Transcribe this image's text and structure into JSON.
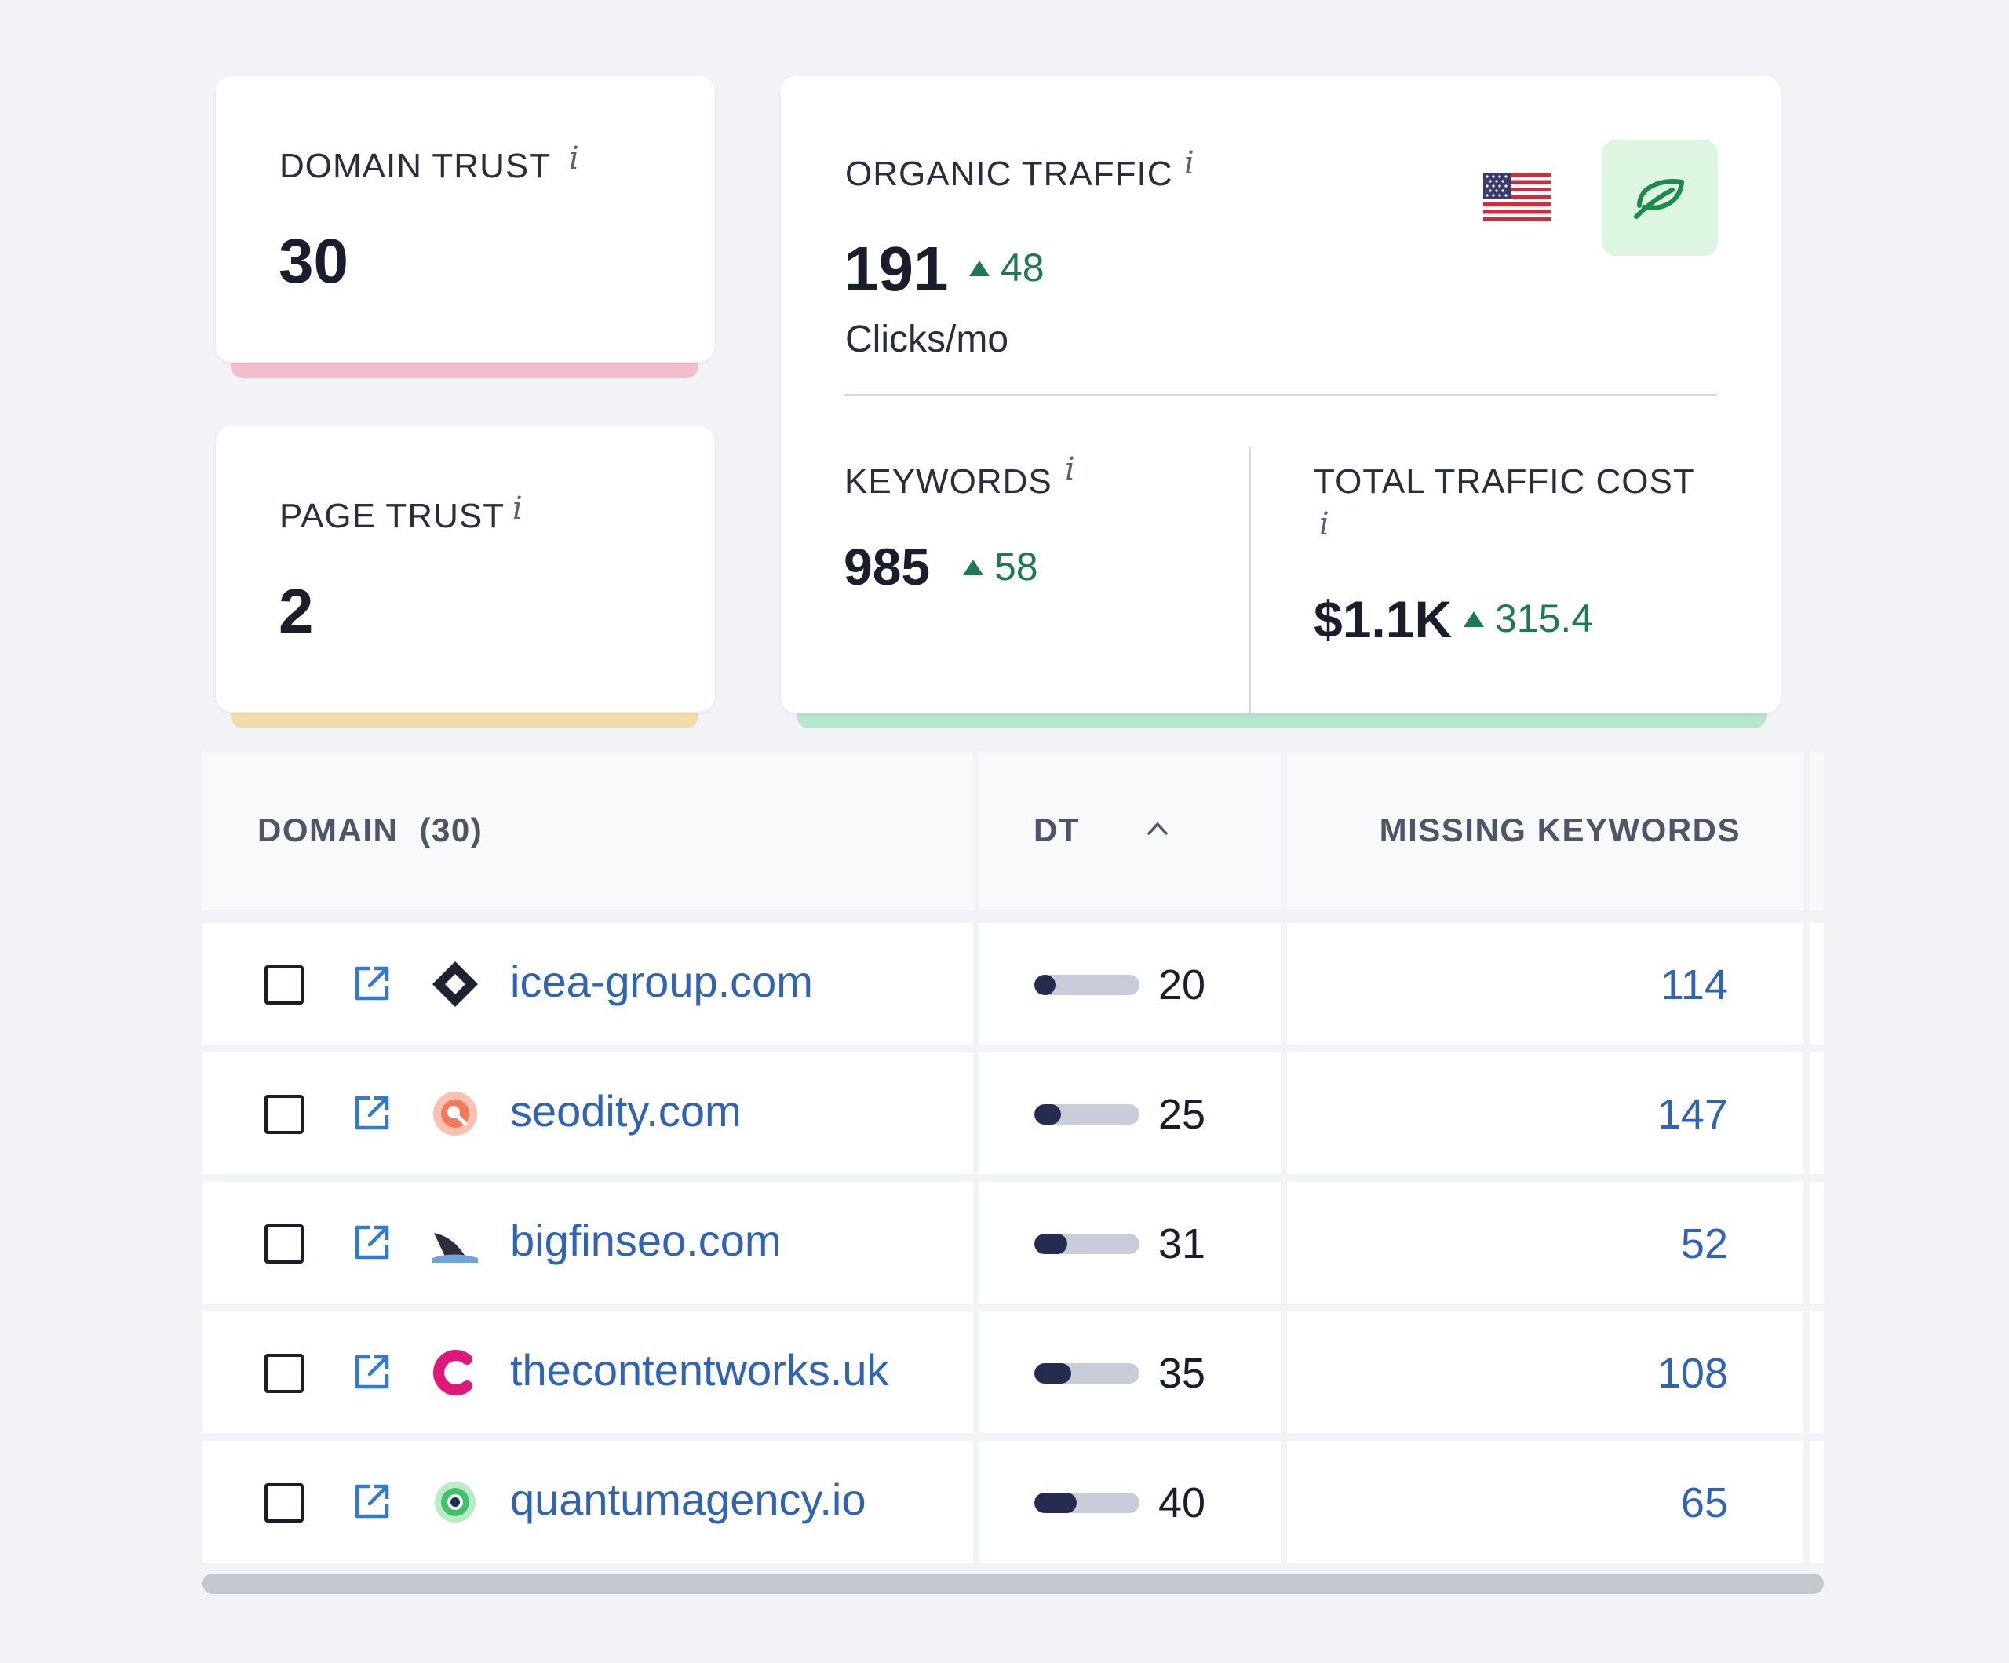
{
  "domain_trust": {
    "label": "DOMAIN TRUST",
    "info": "i",
    "value": "30",
    "accent": "#f2bccc"
  },
  "page_trust": {
    "label": "PAGE TRUST",
    "info": "i",
    "value": "2",
    "accent": "#f3dcac"
  },
  "organic": {
    "label": "ORGANIC TRAFFIC",
    "info": "i",
    "value": "191",
    "delta": "48",
    "unit": "Clicks/mo",
    "flag_icon": "us-flag-icon",
    "leaf_icon": "leaf-icon",
    "accent": "#b6e6cc",
    "keywords": {
      "label": "KEYWORDS",
      "info": "i",
      "value": "985",
      "delta": "58"
    },
    "cost": {
      "label": "TOTAL TRAFFIC COST",
      "info": "i",
      "value": "$1.1K",
      "delta": "315.4"
    }
  },
  "table": {
    "headers": {
      "domain": "DOMAIN",
      "domain_count": "(30)",
      "dt": "DT",
      "missing": "MISSING KEYWORDS"
    },
    "rows": [
      {
        "domain": "icea-group.com",
        "dt": "20",
        "dt_pct": 0.2,
        "missing": "114",
        "favicon": "icea-favicon-icon"
      },
      {
        "domain": "seodity.com",
        "dt": "25",
        "dt_pct": 0.25,
        "missing": "147",
        "favicon": "seodity-favicon-icon"
      },
      {
        "domain": "bigfinseo.com",
        "dt": "31",
        "dt_pct": 0.31,
        "missing": "52",
        "favicon": "bigfin-favicon-icon"
      },
      {
        "domain": "thecontentworks.uk",
        "dt": "35",
        "dt_pct": 0.35,
        "missing": "108",
        "favicon": "contentworks-favicon-icon"
      },
      {
        "domain": "quantumagency.io",
        "dt": "40",
        "dt_pct": 0.4,
        "missing": "65",
        "favicon": "quantum-favicon-icon"
      }
    ]
  }
}
